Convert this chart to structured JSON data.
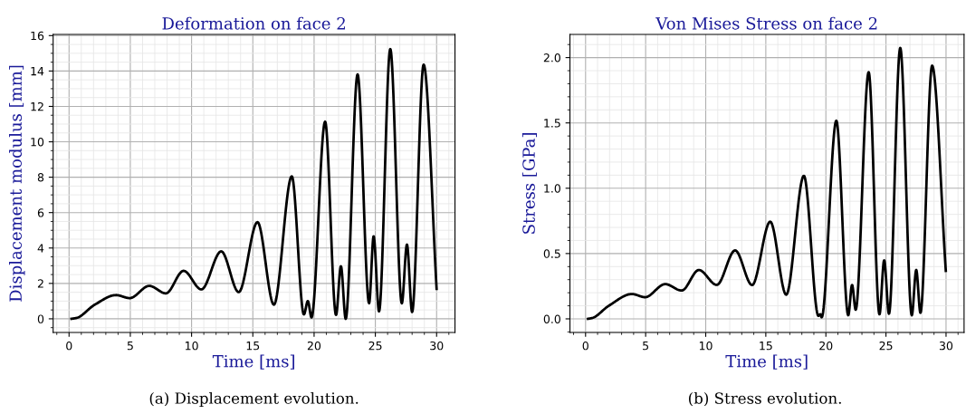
{
  "chart_data": [
    {
      "type": "line",
      "title": "Deformation on face 2",
      "xlabel": "Time [ms]",
      "ylabel": "Displacement modulus [mm]",
      "annotations": [
        "(a) Displacement evolution."
      ],
      "grid": true,
      "legend": false,
      "marker": "none",
      "line_style": "solid",
      "xlim": [
        -1.3,
        31.5
      ],
      "xticks": [
        0,
        5,
        10,
        15,
        20,
        25,
        30
      ],
      "ylim": [
        -0.77,
        16.07
      ],
      "yticks": [
        0,
        2,
        4,
        6,
        8,
        10,
        12,
        14,
        16
      ],
      "series": [
        {
          "color": "#000000",
          "x": [
            0.2,
            0.62,
            2.1,
            3.83,
            4.95,
            6.55,
            7.9,
            9.35,
            10.8,
            12.42,
            13.85,
            15.38,
            16.72,
            18.18,
            19.17,
            19.49,
            19.79,
            20.9,
            21.79,
            22.19,
            22.58,
            23.55,
            24.49,
            24.86,
            25.3,
            26.22,
            27.16,
            27.58,
            28.0,
            28.94,
            30.0
          ],
          "values": [
            0.0,
            0.05,
            0.8,
            1.34,
            1.17,
            1.86,
            1.44,
            2.71,
            1.66,
            3.81,
            1.51,
            5.46,
            0.8,
            8.05,
            0.25,
            1.0,
            0.08,
            11.14,
            0.22,
            2.97,
            0.0,
            13.81,
            0.88,
            4.66,
            0.42,
            15.24,
            0.88,
            4.19,
            0.39,
            14.36,
            1.69
          ]
        }
      ]
    },
    {
      "type": "line",
      "title": "Von Mises Stress on face 2",
      "xlabel": "Time [ms]",
      "ylabel": "Stress [GPa]",
      "annotations": [
        "(b) Stress evolution."
      ],
      "grid": true,
      "legend": false,
      "marker": "none",
      "line_style": "solid",
      "xlim": [
        -1.3,
        31.5
      ],
      "xticks": [
        0,
        5,
        10,
        15,
        20,
        25,
        30
      ],
      "ylim": [
        -0.104,
        2.178
      ],
      "yticks": [
        {
          "value": 0,
          "label": "0.0"
        },
        0.5,
        {
          "value": 1,
          "label": "1.0"
        },
        1.5,
        {
          "value": 2,
          "label": "2.0"
        }
      ],
      "series": [
        {
          "color": "#000000",
          "x": [
            0.2,
            0.57,
            1.93,
            3.86,
            4.95,
            6.63,
            8.0,
            9.43,
            10.92,
            12.45,
            13.86,
            15.37,
            16.7,
            18.17,
            19.38,
            19.53,
            19.65,
            20.87,
            21.86,
            22.18,
            22.48,
            23.56,
            24.46,
            24.85,
            25.25,
            26.19,
            27.15,
            27.52,
            27.87,
            28.84,
            29.98
          ],
          "values": [
            0.0,
            0.007,
            0.1,
            0.19,
            0.166,
            0.266,
            0.217,
            0.374,
            0.26,
            0.524,
            0.259,
            0.744,
            0.185,
            1.095,
            0.023,
            0.035,
            0.012,
            1.517,
            0.028,
            0.259,
            0.07,
            1.889,
            0.035,
            0.448,
            0.039,
            2.074,
            0.028,
            0.374,
            0.046,
            1.938,
            0.367
          ]
        }
      ]
    }
  ]
}
